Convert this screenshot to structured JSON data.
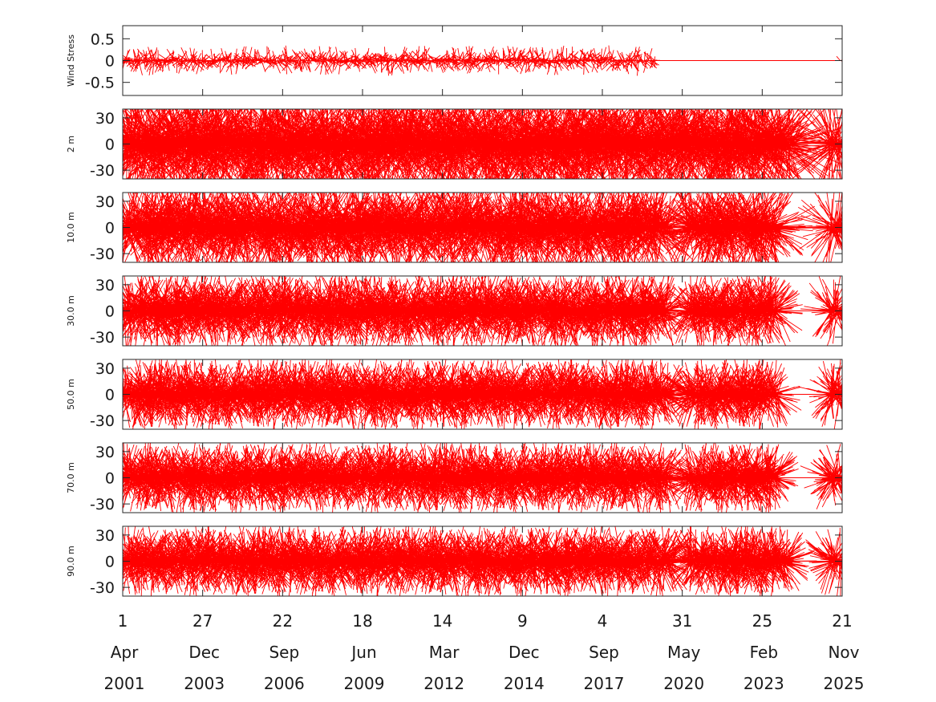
{
  "chart_data": {
    "type": "line",
    "title": "",
    "xlabel": "",
    "x_range": [
      "2001-04-01",
      "2025-11-21"
    ],
    "x_ticks": [
      {
        "day": "1",
        "month": "Apr",
        "year": "2001"
      },
      {
        "day": "27",
        "month": "Dec",
        "year": "2003"
      },
      {
        "day": "22",
        "month": "Sep",
        "year": "2006"
      },
      {
        "day": "18",
        "month": "Jun",
        "year": "2009"
      },
      {
        "day": "14",
        "month": "Mar",
        "year": "2012"
      },
      {
        "day": "9",
        "month": "Dec",
        "year": "2014"
      },
      {
        "day": "4",
        "month": "Sep",
        "year": "2017"
      },
      {
        "day": "31",
        "month": "May",
        "year": "2020"
      },
      {
        "day": "25",
        "month": "Feb",
        "year": "2023"
      },
      {
        "day": "21",
        "month": "Nov",
        "year": "2025"
      }
    ],
    "grid": false,
    "line_color": "#ff0000",
    "panels": [
      {
        "ylabel": "Wind Stress",
        "ylim": [
          -0.8,
          0.8
        ],
        "yticks": [
          0.5,
          0,
          -0.5
        ],
        "ytick_labels": [
          "0.5",
          "0",
          "-0.5"
        ],
        "amplitude": 0.35,
        "dense": false,
        "data_segments": [
          [
            "2001-04-15",
            "2019-07-01"
          ],
          [
            "2025-10-25",
            "2025-11-05"
          ]
        ],
        "flat_segments": [
          [
            "2019-07-01",
            "2025-11-01"
          ]
        ]
      },
      {
        "ylabel": "2 m",
        "ylim": [
          -40,
          40
        ],
        "yticks": [
          30,
          0,
          -30
        ],
        "ytick_labels": [
          "30",
          "0",
          "-30"
        ],
        "amplitude": 70,
        "dense": true,
        "data_segments": [
          [
            "2001-04-01",
            "2017-09-20"
          ],
          [
            "2017-09-20",
            "2024-03-01"
          ],
          [
            "2025-06-01",
            "2025-11-21"
          ]
        ],
        "flat_segments": []
      },
      {
        "ylabel": "10.0 m",
        "ylim": [
          -40,
          40
        ],
        "yticks": [
          30,
          0,
          -30
        ],
        "ytick_labels": [
          "30",
          "0",
          "-30"
        ],
        "amplitude": 55,
        "dense": true,
        "data_segments": [
          [
            "2001-04-01",
            "2019-12-01"
          ],
          [
            "2020-08-01",
            "2023-09-01"
          ],
          [
            "2025-06-15",
            "2025-11-15"
          ]
        ],
        "flat_segments": [
          [
            "2023-09-01",
            "2025-06-15"
          ]
        ]
      },
      {
        "ylabel": "30.0 m",
        "ylim": [
          -40,
          40
        ],
        "yticks": [
          30,
          0,
          -30
        ],
        "ytick_labels": [
          "30",
          "0",
          "-30"
        ],
        "amplitude": 45,
        "dense": true,
        "data_segments": [
          [
            "2001-04-01",
            "2019-12-01"
          ],
          [
            "2020-08-01",
            "2023-09-01"
          ],
          [
            "2025-06-15",
            "2025-11-01"
          ]
        ],
        "flat_segments": [
          [
            "2019-11-01",
            "2020-08-01"
          ],
          [
            "2023-09-01",
            "2025-11-21"
          ]
        ]
      },
      {
        "ylabel": "50.0 m",
        "ylim": [
          -40,
          40
        ],
        "yticks": [
          30,
          0,
          -30
        ],
        "ytick_labels": [
          "30",
          "0",
          "-30"
        ],
        "amplitude": 42,
        "dense": true,
        "data_segments": [
          [
            "2001-04-01",
            "2019-12-01"
          ],
          [
            "2020-08-01",
            "2023-09-01"
          ],
          [
            "2025-06-15",
            "2025-11-21"
          ]
        ],
        "flat_segments": [
          [
            "2019-11-01",
            "2020-08-01"
          ],
          [
            "2023-09-01",
            "2025-11-01"
          ]
        ]
      },
      {
        "ylabel": "70.0 m",
        "ylim": [
          -40,
          40
        ],
        "yticks": [
          30,
          0,
          -30
        ],
        "ytick_labels": [
          "30",
          "0",
          "-30"
        ],
        "amplitude": 42,
        "dense": true,
        "data_segments": [
          [
            "2001-04-01",
            "2019-12-01"
          ],
          [
            "2020-08-01",
            "2023-09-01"
          ],
          [
            "2025-06-15",
            "2025-11-21"
          ]
        ],
        "flat_segments": [
          [
            "2019-11-01",
            "2020-08-01"
          ],
          [
            "2023-09-01",
            "2025-11-01"
          ]
        ]
      },
      {
        "ylabel": "90.0 m",
        "ylim": [
          -40,
          40
        ],
        "yticks": [
          30,
          0,
          -30
        ],
        "ytick_labels": [
          "30",
          "0",
          "-30"
        ],
        "amplitude": 42,
        "dense": true,
        "data_segments": [
          [
            "2001-04-01",
            "2020-01-15"
          ],
          [
            "2020-08-01",
            "2024-01-01"
          ],
          [
            "2025-06-15",
            "2025-11-21"
          ]
        ],
        "flat_segments": [
          [
            "2019-11-01",
            "2020-08-01"
          ],
          [
            "2023-12-01",
            "2025-11-01"
          ]
        ]
      }
    ]
  }
}
